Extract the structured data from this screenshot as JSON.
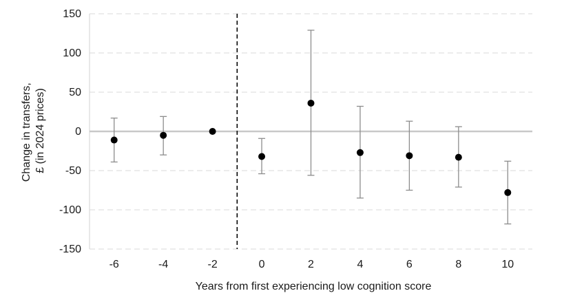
{
  "chart_data": {
    "type": "scatter",
    "title": "",
    "xlabel": "Years from first experiencing low cognition score",
    "ylabel_lines": [
      "Change in transfers,",
      "£ (in 2024 prices)"
    ],
    "x": [
      -6,
      -4,
      -2,
      0,
      2,
      4,
      6,
      8,
      10
    ],
    "y": [
      -11,
      -5,
      0,
      -32,
      36,
      -27,
      -31,
      -33,
      -78
    ],
    "ci_low": [
      -39,
      -30,
      0,
      -54,
      -56,
      -85,
      -75,
      -71,
      -118
    ],
    "ci_high": [
      17,
      19,
      0,
      -9,
      129,
      32,
      13,
      6,
      -38
    ],
    "xlim": [
      -7,
      11
    ],
    "ylim": [
      -150,
      150
    ],
    "yticks": [
      -150,
      -100,
      -50,
      0,
      50,
      100,
      150
    ],
    "xticks": [
      -6,
      -4,
      -2,
      0,
      2,
      4,
      6,
      8,
      10
    ],
    "reference_line_x": -1,
    "grid": "horizontal dashed",
    "colors": {
      "marker": "#000000",
      "errorbar": "#8c8c8c",
      "zero_line": "#c8c8c8",
      "gridline": "#d9d9d9",
      "reference_line": "#000000"
    }
  }
}
